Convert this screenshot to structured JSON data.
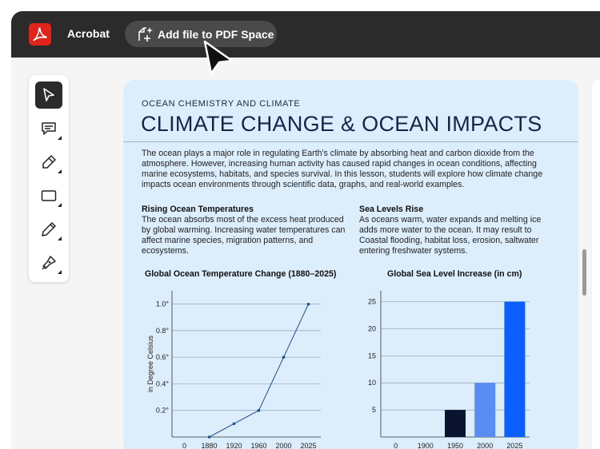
{
  "app": {
    "name": "Acrobat",
    "add_button_label": "Add file to PDF Space"
  },
  "toolbar": {
    "tools": [
      "select-tool",
      "comment-tool",
      "highlight-tool",
      "rectangle-tool",
      "draw-tool",
      "sign-tool"
    ],
    "active_tool": "select-tool"
  },
  "document": {
    "kicker": "OCEAN CHEMISTRY AND CLIMATE",
    "title": "CLIMATE CHANGE & OCEAN IMPACTS",
    "intro": "The ocean plays a major role in regulating Earth's climate by absorbing heat and carbon dioxide from the atmosphere. However, increasing human activity has caused rapid changes in ocean conditions, affecting marine ecosystems, habitats, and species survival. In this lesson, students will explore how climate change impacts ocean environments through scientific data, graphs, and real-world examples.",
    "sections": [
      {
        "heading": "Rising Ocean Temperatures",
        "body": "The ocean absorbs most of the excess heat produced by global warming. Increasing water temperatures can affect marine species, migration patterns, and ecosystems."
      },
      {
        "heading": "Sea Levels Rise",
        "body": "As oceans warm, water expands and melting ice adds more water to the ocean. It may result to Coastal flooding, habitat loss, erosion, saltwater entering freshwater systems."
      }
    ]
  },
  "colors": {
    "titlebar": "#2b2b2b",
    "brand": "#e0241c",
    "doc_background": "#dcedfb",
    "line": "#1f4e8c",
    "bars": [
      "#0a1330",
      "#5a8df2",
      "#0b5fff"
    ]
  },
  "chart_data": [
    {
      "type": "line",
      "title": "Global Ocean Temperature Change (1880–2025)",
      "ylabel": "in Degree Celsius",
      "xlabel": "",
      "x": [
        1880,
        1920,
        1960,
        2000,
        2025
      ],
      "x_ticks": [
        "0",
        "1880",
        "1920",
        "1960",
        "2000",
        "2025"
      ],
      "y_ticks": [
        "0.2°",
        "0.4°",
        "0.6°",
        "0.8°",
        "1.0°"
      ],
      "values": [
        0.0,
        0.1,
        0.2,
        0.6,
        1.0
      ],
      "ylim": [
        0,
        1.1
      ],
      "grid": true
    },
    {
      "type": "bar",
      "title": "Global Sea Level Increase (in cm)",
      "ylabel": "",
      "xlabel": "",
      "categories": [
        "1900",
        "1950",
        "2000",
        "2025"
      ],
      "x_ticks": [
        "0",
        "1900",
        "1950",
        "2000",
        "2025"
      ],
      "y_ticks": [
        "5",
        "10",
        "15",
        "20",
        "25"
      ],
      "values": [
        0,
        5,
        10,
        25
      ],
      "ylim": [
        0,
        27
      ],
      "grid": true
    }
  ]
}
